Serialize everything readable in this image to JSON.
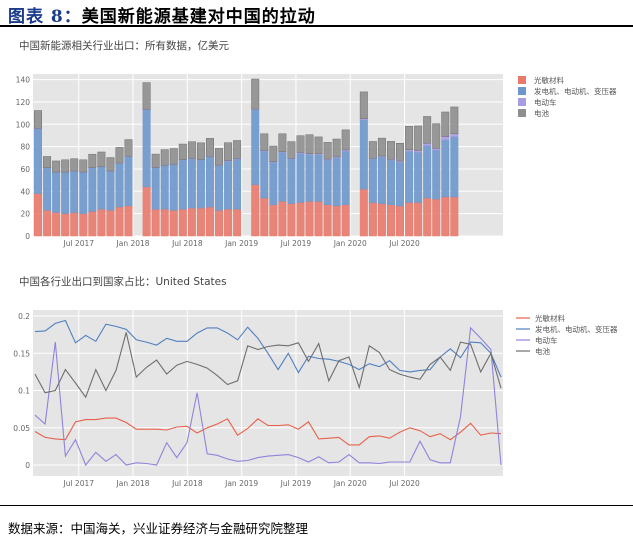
{
  "figure": {
    "label": "图表 8：",
    "title": "美国新能源基建对中国的拉动",
    "source": "数据来源：中国海关，兴业证券经济与金融研究院整理"
  },
  "chart_data": [
    {
      "type": "bar",
      "stacked": true,
      "title": "中国新能源相关行业出口：所有数据，亿美元",
      "xlabel": "",
      "ylabel": "",
      "ylim": [
        0,
        145
      ],
      "yticks": [
        0,
        20,
        40,
        60,
        80,
        100,
        120,
        140
      ],
      "xtick_labels": [
        "Jul 2017",
        "Jan 2018",
        "Jul 2018",
        "Jan 2019",
        "Jul 2019",
        "Jan 2020",
        "Jul 2020"
      ],
      "grid": true,
      "legend_position": "right",
      "categories": [
        "2017-02",
        "2017-03",
        "2017-04",
        "2017-05",
        "2017-06",
        "2017-07",
        "2017-08",
        "2017-09",
        "2017-10",
        "2017-11",
        "2017-12",
        "2018-02",
        "2018-03",
        "2018-04",
        "2018-05",
        "2018-06",
        "2018-07",
        "2018-08",
        "2018-09",
        "2018-10",
        "2018-11",
        "2018-12",
        "2019-02",
        "2019-03",
        "2019-04",
        "2019-05",
        "2019-06",
        "2019-07",
        "2019-08",
        "2019-09",
        "2019-10",
        "2019-11",
        "2019-12",
        "2020-02",
        "2020-03",
        "2020-04",
        "2020-05",
        "2020-06",
        "2020-07",
        "2020-08",
        "2020-09",
        "2020-10",
        "2020-11",
        "2020-12"
      ],
      "series": [
        {
          "name": "光敏材料",
          "color": "#e8796b",
          "values": [
            38,
            23,
            21,
            20,
            21,
            20,
            22,
            24,
            23,
            26,
            27,
            44,
            24,
            24,
            23,
            24,
            25,
            25,
            26,
            23,
            24,
            24,
            46,
            34,
            28,
            31,
            29,
            30,
            31,
            31,
            28,
            27,
            28,
            42,
            30,
            29,
            28,
            27,
            30,
            30,
            34,
            33,
            35,
            35
          ]
        },
        {
          "name": "发电机、电动机、变压器",
          "color": "#6d97cc",
          "values": [
            58,
            38,
            36,
            37,
            37,
            37,
            39,
            38,
            35,
            39,
            44,
            69,
            37,
            39,
            41,
            44,
            44,
            43,
            45,
            40,
            43,
            45,
            67,
            42,
            38,
            44,
            40,
            44,
            42,
            42,
            40,
            43,
            48,
            62,
            39,
            42,
            40,
            39,
            46,
            45,
            47,
            44,
            51,
            54
          ]
        },
        {
          "name": "电动车",
          "color": "#a99be0",
          "values": [
            0.3,
            0.2,
            0.2,
            0.2,
            0.2,
            0.2,
            0.2,
            0.2,
            0.2,
            0.3,
            0.3,
            0.3,
            0.3,
            0.3,
            0.3,
            0.3,
            0.4,
            0.4,
            0.4,
            0.4,
            0.5,
            0.5,
            0.5,
            0.5,
            0.5,
            0.5,
            0.5,
            0.8,
            0.7,
            0.7,
            0.8,
            0.8,
            1.0,
            1.0,
            0.6,
            0.6,
            0.7,
            1.0,
            1.2,
            1.5,
            2.0,
            1.5,
            3.0,
            2.5
          ]
        },
        {
          "name": "电池",
          "color": "#8e8e8e",
          "values": [
            16,
            10,
            10,
            11,
            11,
            11,
            12,
            13,
            12,
            14,
            15,
            24,
            12,
            14,
            14,
            14,
            15,
            15,
            16,
            15,
            16,
            16,
            27,
            15,
            14,
            16,
            15,
            15,
            17,
            15,
            15,
            16,
            18,
            24,
            15,
            16,
            16,
            16,
            21,
            22,
            24,
            22,
            22,
            24
          ]
        }
      ]
    },
    {
      "type": "line",
      "title": "中国各行业出口到国家占比：United States",
      "xlabel": "",
      "ylabel": "",
      "ylim": [
        -0.01,
        0.2
      ],
      "yticks": [
        0,
        0.05,
        0.1,
        0.15,
        0.2
      ],
      "xtick_labels": [
        "Jul 2017",
        "Jan 2018",
        "Jul 2018",
        "Jan 2019",
        "Jul 2019",
        "Jan 2020",
        "Jul 2020"
      ],
      "grid": true,
      "legend_position": "right",
      "x": [
        "2017-02",
        "2017-03",
        "2017-04",
        "2017-05",
        "2017-06",
        "2017-07",
        "2017-08",
        "2017-09",
        "2017-10",
        "2017-11",
        "2017-12",
        "2018-01",
        "2018-02",
        "2018-03",
        "2018-04",
        "2018-05",
        "2018-06",
        "2018-07",
        "2018-08",
        "2018-09",
        "2018-10",
        "2018-11",
        "2018-12",
        "2019-01",
        "2019-02",
        "2019-03",
        "2019-04",
        "2019-05",
        "2019-06",
        "2019-07",
        "2019-08",
        "2019-09",
        "2019-10",
        "2019-11",
        "2019-12",
        "2020-01",
        "2020-02",
        "2020-03",
        "2020-04",
        "2020-05",
        "2020-06",
        "2020-07",
        "2020-08",
        "2020-09",
        "2020-10",
        "2020-11",
        "2020-12"
      ],
      "series": [
        {
          "name": "光敏材料",
          "color": "#e8604c",
          "values": [
            0.045,
            0.037,
            0.035,
            0.034,
            0.058,
            0.061,
            0.061,
            0.063,
            0.063,
            0.057,
            0.048,
            0.048,
            0.048,
            0.047,
            0.051,
            0.052,
            0.043,
            0.05,
            0.055,
            0.062,
            0.04,
            0.049,
            0.062,
            0.053,
            0.053,
            0.054,
            0.048,
            0.058,
            0.035,
            0.036,
            0.037,
            0.027,
            0.027,
            0.038,
            0.039,
            0.036,
            0.044,
            0.05,
            0.046,
            0.038,
            0.042,
            0.034,
            0.044,
            0.056,
            0.04,
            0.043,
            0.042
          ]
        },
        {
          "name": "发电机、电动机、变压器",
          "color": "#4f7fc0",
          "values": [
            0.179,
            0.18,
            0.19,
            0.194,
            0.164,
            0.174,
            0.166,
            0.189,
            0.186,
            0.182,
            0.168,
            0.165,
            0.161,
            0.17,
            0.166,
            0.166,
            0.177,
            0.184,
            0.184,
            0.177,
            0.168,
            0.185,
            0.17,
            0.15,
            0.128,
            0.15,
            0.124,
            0.146,
            0.143,
            0.142,
            0.139,
            0.135,
            0.128,
            0.136,
            0.132,
            0.14,
            0.127,
            0.125,
            0.127,
            0.128,
            0.145,
            0.156,
            0.144,
            0.165,
            0.164,
            0.15,
            0.118
          ]
        },
        {
          "name": "电动车",
          "color": "#8f83db",
          "values": [
            0.067,
            0.055,
            0.165,
            0.012,
            0.034,
            0.0,
            0.017,
            0.005,
            0.014,
            0.0,
            0.003,
            0.002,
            0.0,
            0.03,
            0.01,
            0.03,
            0.097,
            0.015,
            0.013,
            0.008,
            0.005,
            0.006,
            0.01,
            0.012,
            0.013,
            0.014,
            0.01,
            0.004,
            0.011,
            0.003,
            0.004,
            0.014,
            0.003,
            0.003,
            0.002,
            0.004,
            0.004,
            0.004,
            0.032,
            0.007,
            0.003,
            0.003,
            0.065,
            0.184,
            0.17,
            0.155,
            0.0
          ]
        },
        {
          "name": "电池",
          "color": "#6e6e6e",
          "values": [
            0.122,
            0.097,
            0.1,
            0.128,
            0.11,
            0.091,
            0.128,
            0.1,
            0.127,
            0.178,
            0.118,
            0.131,
            0.141,
            0.122,
            0.134,
            0.139,
            0.135,
            0.13,
            0.12,
            0.108,
            0.113,
            0.16,
            0.155,
            0.159,
            0.161,
            0.16,
            0.164,
            0.139,
            0.163,
            0.113,
            0.14,
            0.145,
            0.104,
            0.16,
            0.151,
            0.128,
            0.122,
            0.118,
            0.115,
            0.135,
            0.145,
            0.127,
            0.165,
            0.162,
            0.125,
            0.15,
            0.103
          ]
        }
      ]
    }
  ]
}
